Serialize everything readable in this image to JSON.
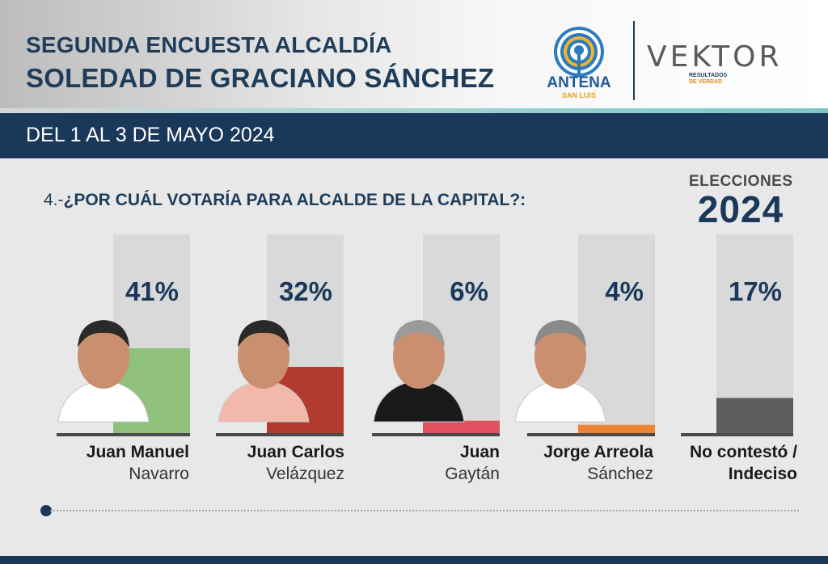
{
  "header": {
    "title_line1": "SEGUNDA ENCUESTA ALCALDÍA",
    "title_line2": "SOLEDAD DE GRACIANO SÁNCHEZ",
    "date": "DEL 1 AL 3 DE MAYO 2024"
  },
  "logos": {
    "antena": "ANTENA",
    "antena_sub": "SAN LUIS",
    "vektor": "VEKTOR",
    "vektor_sub_1": "RESULTADOS",
    "vektor_sub_2": "DE VERDAD"
  },
  "question": {
    "number": "4.-",
    "text": "¿POR CUÁL VOTARÍA PARA ALCALDE DE LA CAPITAL?:"
  },
  "badge": {
    "label": "ELECCIONES",
    "year": "2024"
  },
  "chart_data": {
    "type": "bar",
    "categories": [
      "Juan Manuel Navarro",
      "Juan Carlos Velázquez",
      "Juan Gaytán",
      "Jorge Arreola Sánchez",
      "No contestó / Indeciso"
    ],
    "values": [
      41,
      32,
      6,
      4,
      17
    ],
    "labels": [
      "41%",
      "32%",
      "6%",
      "4%",
      "17%"
    ],
    "ylim": [
      0,
      100
    ],
    "colors": [
      "#8fc17d",
      "#b23a2e",
      "#e0525f",
      "#ec8434",
      "#5e5e5e"
    ]
  },
  "candidates": [
    {
      "first": "Juan Manuel",
      "last": "Navarro"
    },
    {
      "first": "Juan Carlos",
      "last": "Velázquez"
    },
    {
      "first": "Juan",
      "last": "Gaytán"
    },
    {
      "first": "Jorge Arreola",
      "last": "Sánchez"
    },
    {
      "first": "No contestó /",
      "last": "Indeciso"
    }
  ]
}
